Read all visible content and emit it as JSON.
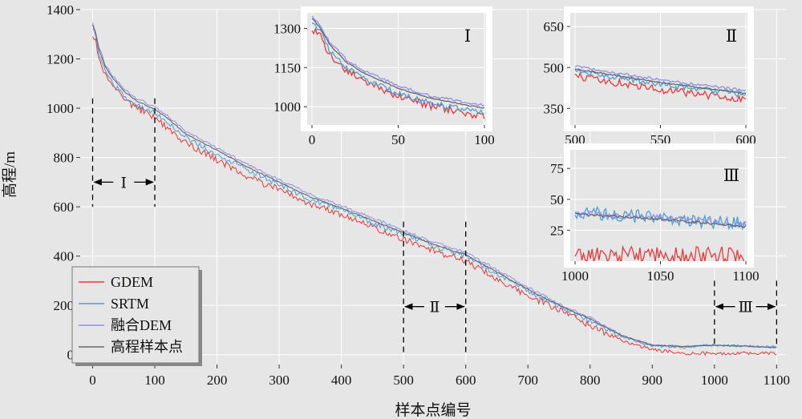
{
  "chart_data": {
    "type": "line",
    "xlabel": "样本点编号",
    "ylabel": "高程/m",
    "xlim": [
      -20,
      1115
    ],
    "ylim": [
      -40,
      1400
    ],
    "xticks": [
      0,
      100,
      200,
      300,
      400,
      500,
      600,
      700,
      800,
      900,
      1000,
      1100
    ],
    "yticks": [
      0,
      200,
      400,
      600,
      800,
      1000,
      1200,
      1400
    ],
    "legend_position": "bottom-left",
    "legend": [
      "GDEM",
      "SRTM",
      "融合DEM",
      "高程样本点"
    ],
    "colors": {
      "GDEM": "#e8393a",
      "SRTM": "#4a9fd8",
      "融合DEM": "#8e8ef0",
      "高程样本点": "#666666"
    },
    "series": [
      {
        "name": "GDEM",
        "x": [
          0,
          5,
          10,
          20,
          30,
          40,
          50,
          60,
          70,
          80,
          90,
          100,
          120,
          150,
          200,
          250,
          300,
          350,
          400,
          450,
          500,
          550,
          600,
          650,
          700,
          750,
          800,
          850,
          900,
          950,
          1000,
          1050,
          1100
        ],
        "values": [
          1300,
          1270,
          1200,
          1140,
          1100,
          1070,
          1040,
          1020,
          1000,
          990,
          975,
          960,
          920,
          860,
          790,
          720,
          670,
          610,
          570,
          520,
          470,
          420,
          380,
          310,
          240,
          180,
          120,
          60,
          20,
          5,
          5,
          5,
          5
        ]
      },
      {
        "name": "SRTM",
        "x": [
          0,
          5,
          10,
          20,
          30,
          40,
          50,
          60,
          70,
          80,
          90,
          100,
          120,
          150,
          200,
          250,
          300,
          350,
          400,
          450,
          500,
          550,
          600,
          650,
          700,
          750,
          800,
          850,
          900,
          950,
          1000,
          1050,
          1100
        ],
        "values": [
          1330,
          1290,
          1220,
          1150,
          1110,
          1080,
          1050,
          1030,
          1010,
          1000,
          990,
          980,
          945,
          880,
          810,
          750,
          690,
          630,
          590,
          535,
          490,
          440,
          400,
          330,
          260,
          195,
          140,
          75,
          35,
          30,
          40,
          35,
          30
        ]
      },
      {
        "name": "融合DEM",
        "x": [
          0,
          5,
          10,
          20,
          30,
          40,
          50,
          60,
          70,
          80,
          90,
          100,
          120,
          150,
          200,
          250,
          300,
          350,
          400,
          450,
          500,
          550,
          600,
          650,
          700,
          750,
          800,
          850,
          900,
          950,
          1000,
          1050,
          1100
        ],
        "values": [
          1350,
          1310,
          1250,
          1180,
          1140,
          1110,
          1080,
          1060,
          1040,
          1030,
          1015,
          1005,
          970,
          905,
          840,
          770,
          710,
          650,
          605,
          555,
          505,
          455,
          415,
          345,
          275,
          205,
          150,
          80,
          40,
          35,
          38,
          35,
          30
        ]
      },
      {
        "name": "高程样本点",
        "x": [
          0,
          5,
          10,
          20,
          30,
          40,
          50,
          60,
          70,
          80,
          90,
          100,
          120,
          150,
          200,
          250,
          300,
          350,
          400,
          450,
          500,
          550,
          600,
          650,
          700,
          750,
          800,
          850,
          900,
          950,
          1000,
          1050,
          1100
        ],
        "values": [
          1340,
          1300,
          1240,
          1170,
          1130,
          1100,
          1070,
          1050,
          1030,
          1020,
          1005,
          995,
          960,
          895,
          830,
          760,
          700,
          640,
          595,
          545,
          495,
          445,
          405,
          335,
          265,
          200,
          145,
          78,
          38,
          33,
          38,
          34,
          28
        ]
      }
    ],
    "ranges": [
      {
        "label": "Ⅰ",
        "from": 0,
        "to": 100
      },
      {
        "label": "Ⅱ",
        "from": 500,
        "to": 600
      },
      {
        "label": "Ⅲ",
        "from": 1000,
        "to": 1100
      }
    ],
    "insets": [
      {
        "label": "Ⅰ",
        "xlim": [
          0,
          100
        ],
        "ylim": [
          930,
          1360
        ],
        "xticks": [
          0,
          50,
          100
        ],
        "yticks": [
          1000,
          1150,
          1300
        ]
      },
      {
        "label": "Ⅱ",
        "xlim": [
          500,
          600
        ],
        "ylim": [
          290,
          700
        ],
        "xticks": [
          500,
          550,
          600
        ],
        "yticks": [
          350,
          500,
          650
        ]
      },
      {
        "label": "Ⅲ",
        "xlim": [
          1000,
          1100
        ],
        "ylim": [
          0,
          90
        ],
        "xticks": [
          1000,
          1050,
          1100
        ],
        "yticks": [
          25,
          50,
          75
        ]
      }
    ]
  }
}
